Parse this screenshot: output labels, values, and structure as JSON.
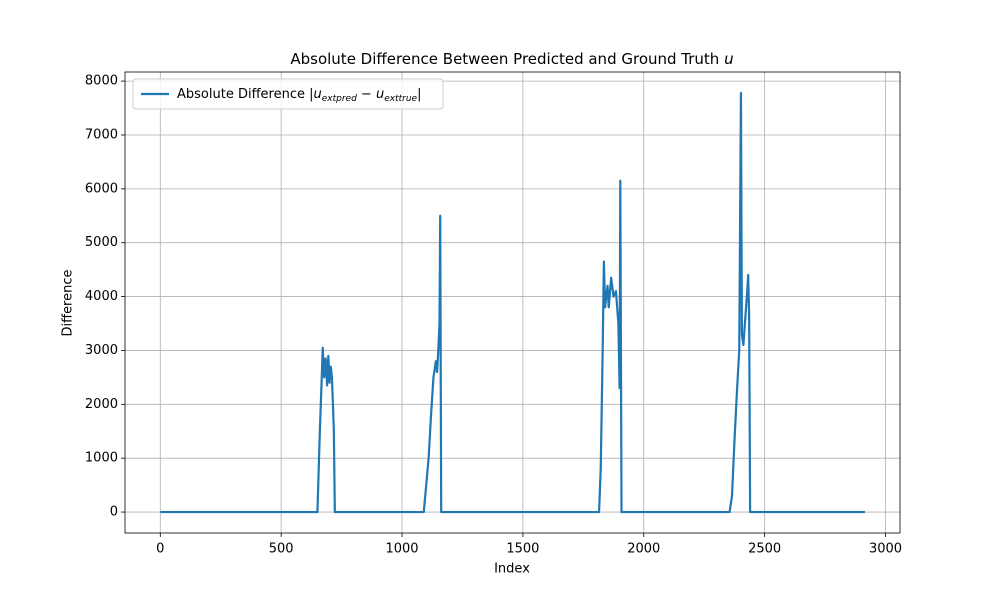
{
  "chart_data": {
    "type": "line",
    "title": "Absolute Difference Between Predicted and Ground Truth",
    "title_math": "u",
    "xlabel": "Index",
    "ylabel": "Difference",
    "x": [
      0,
      650,
      660,
      668,
      672,
      678,
      684,
      690,
      695,
      700,
      705,
      710,
      715,
      718,
      722,
      1090,
      1100,
      1110,
      1120,
      1130,
      1140,
      1145,
      1150,
      1155,
      1158,
      1162,
      1815,
      1822,
      1830,
      1835,
      1840,
      1850,
      1855,
      1865,
      1875,
      1885,
      1895,
      1900,
      1903,
      1908,
      2355,
      2365,
      2375,
      2385,
      2395,
      2402,
      2406,
      2412,
      2420,
      2428,
      2432,
      2436,
      2440,
      2915
    ],
    "series": [
      {
        "name": "Absolute Difference",
        "name_math": [
          "|u",
          "extpred",
          " − u",
          "exttrue",
          "|"
        ],
        "color": "#1f77b4",
        "values": [
          0,
          0,
          1500,
          2500,
          3050,
          2500,
          2850,
          2350,
          2900,
          2400,
          2700,
          2500,
          1900,
          1500,
          0,
          0,
          500,
          1000,
          1800,
          2500,
          2800,
          2600,
          3000,
          3500,
          5500,
          0,
          0,
          800,
          3000,
          4650,
          3800,
          4200,
          3800,
          4350,
          4000,
          4100,
          3500,
          2300,
          6150,
          0,
          0,
          300,
          1300,
          2200,
          3000,
          7780,
          3300,
          3100,
          3600,
          4100,
          4400,
          3600,
          0,
          0
        ]
      }
    ],
    "xlim": [
      -146,
      3060
    ],
    "ylim": [
      -389,
      8169
    ],
    "xticks": [
      0,
      500,
      1000,
      1500,
      2000,
      2500,
      3000
    ],
    "yticks": [
      0,
      1000,
      2000,
      3000,
      4000,
      5000,
      6000,
      7000,
      8000
    ],
    "grid": true,
    "legend": "upper left"
  }
}
